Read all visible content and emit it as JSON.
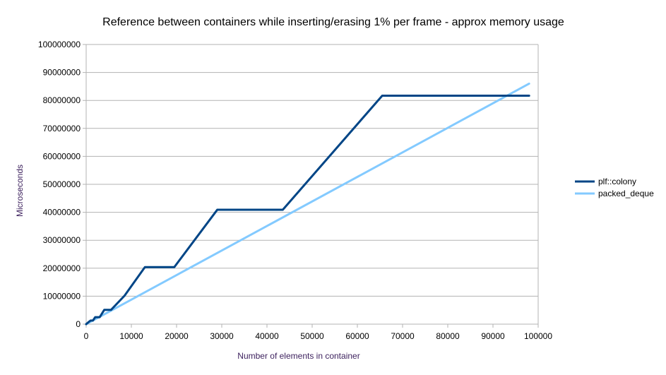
{
  "chart_data": {
    "type": "line",
    "title": "Reference between containers while inserting/erasing 1% per frame - approx memory usage",
    "xlabel": "Number of elements in container",
    "ylabel": "Microseconds",
    "xlim": [
      0,
      100000
    ],
    "ylim": [
      0,
      100000000
    ],
    "x_ticks": [
      "0",
      "10000",
      "20000",
      "30000",
      "40000",
      "50000",
      "60000",
      "70000",
      "80000",
      "90000",
      "100000"
    ],
    "y_ticks": [
      "0",
      "10000000",
      "20000000",
      "30000000",
      "40000000",
      "50000000",
      "60000000",
      "70000000",
      "80000000",
      "90000000",
      "100000000"
    ],
    "grid": "horizontal",
    "legend_position": "right",
    "series": [
      {
        "name": "plf::colony",
        "color": "#004586",
        "points": [
          [
            0,
            0
          ],
          [
            500,
            700000
          ],
          [
            1000,
            1300000
          ],
          [
            1500,
            1300000
          ],
          [
            2000,
            2500000
          ],
          [
            3000,
            2500000
          ],
          [
            4000,
            5100000
          ],
          [
            5500,
            5100000
          ],
          [
            8500,
            10200000
          ],
          [
            13000,
            20400000
          ],
          [
            19500,
            20400000
          ],
          [
            29000,
            40900000
          ],
          [
            43500,
            40900000
          ],
          [
            65500,
            81700000
          ],
          [
            98000,
            81700000
          ]
        ]
      },
      {
        "name": "packed_deque",
        "color": "#83caff",
        "points": [
          [
            0,
            0
          ],
          [
            98000,
            86000000
          ]
        ]
      }
    ]
  }
}
